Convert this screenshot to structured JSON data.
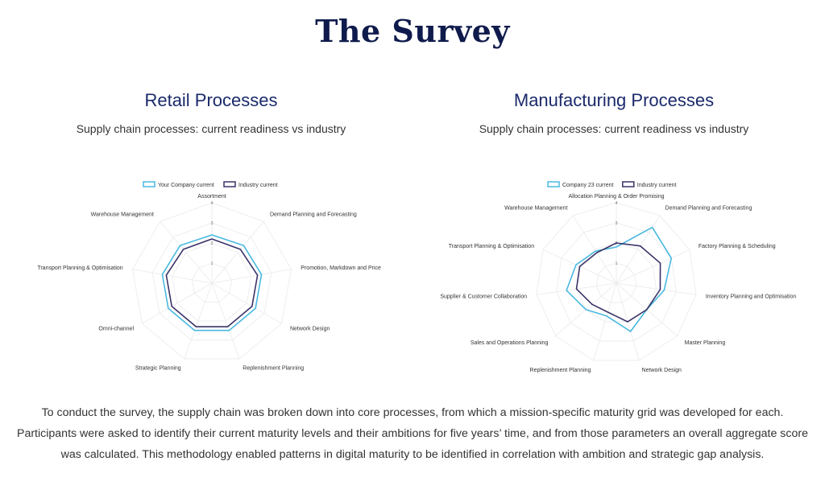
{
  "page": {
    "title": "The Survey"
  },
  "panels": {
    "retail": {
      "title": "Retail Processes",
      "subtitle": "Supply chain processes: current readiness vs industry"
    },
    "manufacturing": {
      "title": "Manufacturing Processes",
      "subtitle": "Supply chain processes: current readiness vs industry"
    }
  },
  "paragraph": "To conduct the survey, the supply chain was broken down into core processes, from which a mission-specific maturity grid was developed for each. Participants were asked to identify their current maturity levels and their ambitions for five years’ time, and from those parameters an overall aggregate score was calculated. This methodology enabled patterns in digital maturity to be identified in correlation with ambition and strategic gap analysis.",
  "colors": {
    "company": "#4ab8e0",
    "industry": "#3a3368",
    "grid": "#eeeeee"
  },
  "chart_data": [
    {
      "type": "radar",
      "id": "retail",
      "categories": [
        "Assortment",
        "Demand Planning and Forecasting",
        "Promotion, Markdown and Price",
        "Network Design",
        "Replenishment Planning",
        "Strategic Planning",
        "Omni-channel",
        "Transport Planning & Optimisation",
        "Warehouse Management"
      ],
      "rlim": [
        0,
        4
      ],
      "ticks": [
        1,
        2,
        3,
        4
      ],
      "legend_position": "top-center",
      "series": [
        {
          "name": "Your Company current",
          "color": "#4ab8e0",
          "values": [
            2.4,
            2.45,
            2.5,
            2.5,
            2.5,
            2.5,
            2.5,
            2.5,
            2.45
          ]
        },
        {
          "name": "Industry current",
          "color": "#3a3368",
          "values": [
            2.2,
            2.2,
            2.3,
            2.3,
            2.3,
            2.3,
            2.3,
            2.3,
            2.2
          ]
        }
      ]
    },
    {
      "type": "radar",
      "id": "manufacturing",
      "categories": [
        "Allocation Planning & Order Promising",
        "Demand Planning and Forecasting",
        "Factory Planning & Scheduling",
        "Inventory Planning and Optimisation",
        "Master Planning",
        "Network Design",
        "Replenishment Planning",
        "Sales and Operations Planning",
        "Supplier & Customer Collaboration",
        "Transport Planning & Optimisation",
        "Warehouse Management"
      ],
      "rlim": [
        0,
        4
      ],
      "ticks": [
        1,
        2,
        3,
        4
      ],
      "legend_position": "top-center",
      "series": [
        {
          "name": "Company 23 current",
          "color": "#4ab8e0",
          "values": [
            1.8,
            3.3,
            3.0,
            2.4,
            2.0,
            2.5,
            1.7,
            2.0,
            2.5,
            2.2,
            1.9
          ]
        },
        {
          "name": "Industry current",
          "color": "#3a3368",
          "values": [
            2.0,
            2.2,
            2.4,
            2.2,
            2.0,
            2.0,
            1.5,
            1.6,
            2.0,
            2.0,
            1.8
          ]
        }
      ]
    }
  ]
}
